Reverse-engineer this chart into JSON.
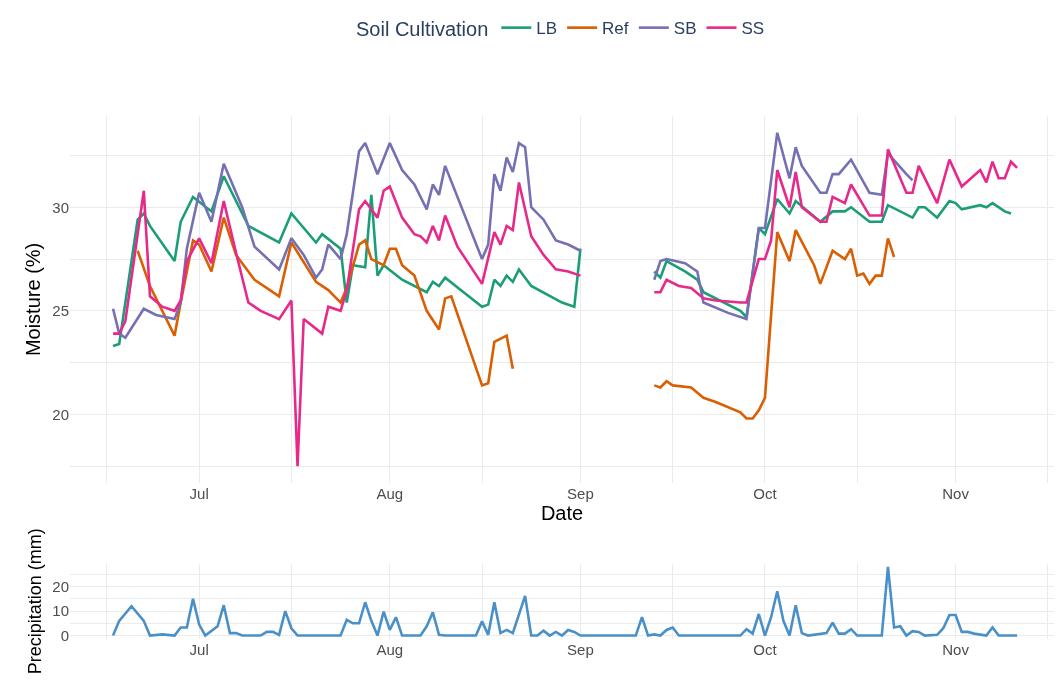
{
  "chart_data": [
    {
      "type": "line",
      "xlabel": "Date",
      "ylabel": "Moisture (%)",
      "legend_title": "Soil Cultivation",
      "legend": "top",
      "grid": true,
      "xlim": [
        "--06-10",
        "--11-17"
      ],
      "xticks": [
        {
          "value": "--06-16",
          "label": null
        },
        {
          "value": "--07-01",
          "label": "Jul"
        },
        {
          "value": "--07-16",
          "label": null
        },
        {
          "value": "--08-01",
          "label": "Aug"
        },
        {
          "value": "--08-16",
          "label": null
        },
        {
          "value": "--09-01",
          "label": "Sep"
        },
        {
          "value": "--09-16",
          "label": null
        },
        {
          "value": "--10-01",
          "label": "Oct"
        },
        {
          "value": "--10-16",
          "label": null
        },
        {
          "value": "--11-01",
          "label": "Nov"
        },
        {
          "value": "--11-16",
          "label": null
        }
      ],
      "ylim": [
        16.7,
        34.4
      ],
      "yticks": [
        {
          "value": 17.5,
          "label": null
        },
        20,
        {
          "value": 22.5,
          "label": null
        },
        25,
        {
          "value": 27.5,
          "label": null
        },
        30,
        {
          "value": 32.5,
          "label": null
        }
      ],
      "series": [
        {
          "name": "LB",
          "color": "#1b9e77",
          "x": [
            "--06-17",
            "--06-18",
            "--06-21",
            "--06-22",
            "--06-23",
            "--06-27",
            "--06-28",
            "--06-30",
            "--07-03",
            "--07-05",
            "--07-09",
            "--07-14",
            "--07-16",
            "--07-20",
            "--07-21",
            "--07-24",
            "--07-25",
            "--07-26",
            "--07-28",
            "--07-29",
            "--07-30",
            "--07-31",
            "--08-03",
            "--08-07",
            "--08-08",
            "--08-09",
            "--08-10",
            "--08-13",
            "--08-16",
            "--08-17",
            "--08-18",
            "--08-19",
            "--08-20",
            "--08-21",
            "--08-22",
            "--08-24",
            "--08-29",
            "--08-31",
            "--09-01",
            "--09-05",
            "--09-13",
            "--09-14",
            "--09-15",
            "--09-18",
            "--09-20",
            "--09-21",
            "--09-27",
            "--09-28",
            "--09-30",
            "--10-01",
            "--10-03",
            "--10-05",
            "--10-06",
            "--10-10",
            "--10-12",
            "--10-14",
            "--10-15",
            "--10-18",
            "--10-20",
            "--10-21",
            "--10-25",
            "--10-26",
            "--10-27",
            "--10-29",
            "--10-31",
            "--11-01",
            "--11-02",
            "--11-05",
            "--11-06",
            "--11-07",
            "--11-09",
            "--11-10"
          ],
          "values": [
            23.3,
            23.4,
            29.4,
            29.7,
            29.1,
            27.4,
            29.3,
            30.5,
            29.8,
            31.5,
            29.1,
            28.3,
            29.7,
            28.3,
            28.7,
            28.0,
            25.4,
            27.2,
            27.1,
            30.6,
            26.7,
            27.2,
            26.5,
            25.9,
            26.4,
            26.2,
            26.6,
            25.9,
            25.2,
            25.3,
            26.5,
            26.2,
            26.7,
            26.4,
            27.0,
            26.2,
            25.4,
            25.2,
            28.0,
            null,
            26.9,
            26.6,
            27.4,
            26.9,
            26.5,
            25.9,
            25.0,
            24.7,
            29.0,
            28.7,
            30.4,
            29.7,
            30.3,
            29.3,
            29.8,
            29.8,
            30.0,
            29.3,
            29.3,
            30.1,
            29.5,
            30.0,
            30.0,
            29.5,
            30.3,
            30.2,
            29.9,
            30.1,
            30.0,
            30.2,
            29.8,
            29.7
          ]
        },
        {
          "name": "Ref",
          "color": "#d95f02",
          "x": [
            "--06-21",
            "--06-23",
            "--06-27",
            "--06-28",
            "--06-30",
            "--07-01",
            "--07-03",
            "--07-05",
            "--07-07",
            "--07-10",
            "--07-14",
            "--07-16",
            "--07-20",
            "--07-22",
            "--07-24",
            "--07-25",
            "--07-27",
            "--07-28",
            "--07-29",
            "--07-31",
            "--08-01",
            "--08-02",
            "--08-03",
            "--08-05",
            "--08-07",
            "--08-09",
            "--08-10",
            "--08-11",
            "--08-16",
            "--08-17",
            "--08-18",
            "--08-20",
            "--08-21",
            "--09-05",
            "--09-13",
            "--09-14",
            "--09-15",
            "--09-16",
            "--09-19",
            "--09-21",
            "--09-23",
            "--09-27",
            "--09-28",
            "--09-29",
            "--09-30",
            "--10-01",
            "--10-03",
            "--10-05",
            "--10-06",
            "--10-09",
            "--10-10",
            "--10-12",
            "--10-14",
            "--10-15",
            "--10-16",
            "--10-17",
            "--10-18",
            "--10-19",
            "--10-20",
            "--10-21",
            "--10-22"
          ],
          "values": [
            27.9,
            26.2,
            23.8,
            25.4,
            28.4,
            28.2,
            26.9,
            29.5,
            27.7,
            26.5,
            25.7,
            28.3,
            26.4,
            26.0,
            25.4,
            26.1,
            28.2,
            28.4,
            27.5,
            27.2,
            28.0,
            28.0,
            27.2,
            26.7,
            25.0,
            24.1,
            25.6,
            25.7,
            21.4,
            21.5,
            23.5,
            23.8,
            22.2,
            null,
            21.4,
            21.3,
            21.6,
            21.4,
            21.3,
            20.8,
            20.6,
            20.1,
            19.8,
            19.8,
            20.2,
            20.8,
            28.8,
            27.4,
            28.9,
            27.2,
            26.3,
            27.9,
            27.5,
            28.0,
            26.7,
            26.8,
            26.3,
            26.7,
            26.7,
            28.5,
            27.6
          ]
        },
        {
          "name": "SB",
          "color": "#7570b3",
          "x": [
            "--06-17",
            "--06-18",
            "--06-19",
            "--06-22",
            "--06-24",
            "--06-27",
            "--06-28",
            "--06-29",
            "--07-01",
            "--07-03",
            "--07-05",
            "--07-08",
            "--07-10",
            "--07-14",
            "--07-16",
            "--07-18",
            "--07-20",
            "--07-21",
            "--07-22",
            "--07-24",
            "--07-25",
            "--07-27",
            "--07-28",
            "--07-30",
            "--08-01",
            "--08-03",
            "--08-05",
            "--08-07",
            "--08-08",
            "--08-09",
            "--08-10",
            "--08-16",
            "--08-17",
            "--08-18",
            "--08-19",
            "--08-20",
            "--08-21",
            "--08-22",
            "--08-23",
            "--08-24",
            "--08-26",
            "--08-28",
            "--08-30",
            "--09-01",
            "--09-05",
            "--09-13",
            "--09-14",
            "--09-15",
            "--09-18",
            "--09-20",
            "--09-21",
            "--09-25",
            "--09-28",
            "--09-30",
            "--10-01",
            "--10-03",
            "--10-05",
            "--10-06",
            "--10-07",
            "--10-10",
            "--10-11",
            "--10-12",
            "--10-13",
            "--10-15",
            "--10-18",
            "--10-20",
            "--10-21",
            "--10-24",
            "--10-25"
          ],
          "values": [
            25.1,
            23.9,
            23.7,
            25.1,
            24.8,
            24.6,
            25.4,
            28.0,
            30.7,
            29.3,
            32.1,
            30.0,
            28.1,
            27.0,
            28.5,
            27.7,
            26.6,
            27.0,
            28.2,
            27.5,
            28.7,
            32.7,
            33.1,
            31.6,
            33.1,
            31.8,
            31.1,
            29.9,
            31.1,
            30.6,
            32.0,
            27.5,
            28.2,
            31.6,
            30.8,
            32.4,
            31.7,
            33.1,
            32.9,
            30.0,
            29.4,
            28.4,
            28.2,
            27.9,
            null,
            26.5,
            27.4,
            27.5,
            27.3,
            26.9,
            25.4,
            24.9,
            24.6,
            29.0,
            29.0,
            33.6,
            31.4,
            32.9,
            32.0,
            30.7,
            30.7,
            31.6,
            31.6,
            32.3,
            30.7,
            30.6,
            32.6,
            31.6,
            31.3
          ]
        },
        {
          "name": "SS",
          "color": "#e7298a",
          "x": [
            "--06-17",
            "--06-18",
            "--06-19",
            "--06-22",
            "--06-23",
            "--06-25",
            "--06-27",
            "--06-28",
            "--06-29",
            "--07-01",
            "--07-03",
            "--07-05",
            "--07-07",
            "--07-09",
            "--07-11",
            "--07-14",
            "--07-16",
            "--07-17",
            "--07-18",
            "--07-21",
            "--07-22",
            "--07-24",
            "--07-25",
            "--07-27",
            "--07-28",
            "--07-30",
            "--07-31",
            "--08-01",
            "--08-03",
            "--08-05",
            "--08-06",
            "--08-07",
            "--08-08",
            "--08-09",
            "--08-10",
            "--08-12",
            "--08-16",
            "--08-18",
            "--08-19",
            "--08-20",
            "--08-21",
            "--08-22",
            "--08-24",
            "--08-26",
            "--08-28",
            "--08-30",
            "--09-01",
            "--09-05",
            "--09-13",
            "--09-14",
            "--09-15",
            "--09-17",
            "--09-19",
            "--09-21",
            "--09-23",
            "--09-27",
            "--09-28",
            "--09-30",
            "--10-01",
            "--10-02",
            "--10-03",
            "--10-05",
            "--10-06",
            "--10-07",
            "--10-10",
            "--10-11",
            "--10-12",
            "--10-14",
            "--10-15",
            "--10-18",
            "--10-20",
            "--10-21",
            "--10-24",
            "--10-25",
            "--10-26",
            "--10-29",
            "--10-31",
            "--11-02",
            "--11-05",
            "--11-06",
            "--11-07",
            "--11-08",
            "--11-09",
            "--11-10",
            "--11-11"
          ],
          "values": [
            23.9,
            23.9,
            24.5,
            30.8,
            25.7,
            25.2,
            25.0,
            25.5,
            27.4,
            28.5,
            27.3,
            30.3,
            27.8,
            25.4,
            25.0,
            24.6,
            25.5,
            17.5,
            24.6,
            23.9,
            25.2,
            25.0,
            26.0,
            29.9,
            30.3,
            29.5,
            30.8,
            31.0,
            29.5,
            28.7,
            28.6,
            28.3,
            29.1,
            28.4,
            29.6,
            28.1,
            26.3,
            28.8,
            28.2,
            29.1,
            28.9,
            31.2,
            28.6,
            27.7,
            27.0,
            26.9,
            26.7,
            null,
            25.9,
            25.9,
            26.5,
            26.2,
            26.1,
            25.6,
            25.5,
            25.4,
            25.4,
            27.5,
            27.5,
            28.4,
            31.8,
            30.0,
            31.7,
            30.0,
            29.3,
            29.3,
            30.5,
            30.2,
            31.1,
            29.6,
            29.6,
            32.8,
            30.7,
            30.7,
            32.0,
            30.2,
            32.3,
            31.0,
            31.8,
            31.2,
            32.2,
            31.4,
            31.4,
            32.2,
            31.9
          ]
        }
      ]
    },
    {
      "type": "line",
      "ylabel": "Precipitation (mm)",
      "grid": true,
      "xlim": [
        "--06-10",
        "--11-17"
      ],
      "xticks": [
        {
          "value": "--06-16",
          "label": null
        },
        {
          "value": "--07-01",
          "label": "Jul"
        },
        {
          "value": "--07-16",
          "label": null
        },
        {
          "value": "--08-01",
          "label": "Aug"
        },
        {
          "value": "--08-16",
          "label": null
        },
        {
          "value": "--09-01",
          "label": "Sep"
        },
        {
          "value": "--09-16",
          "label": null
        },
        {
          "value": "--10-01",
          "label": "Oct"
        },
        {
          "value": "--10-16",
          "label": null
        },
        {
          "value": "--11-01",
          "label": "Nov"
        },
        {
          "value": "--11-16",
          "label": null
        }
      ],
      "ylim": [
        -1.4,
        29.4
      ],
      "yticks": [
        0,
        {
          "value": 5,
          "label": null
        },
        10,
        {
          "value": 15,
          "label": null
        },
        20,
        {
          "value": 25,
          "label": null
        }
      ],
      "series": [
        {
          "color": "#4a90c8",
          "x": [
            "--06-17",
            "--06-18",
            "--06-20",
            "--06-22",
            "--06-23",
            "--06-25",
            "--06-27",
            "--06-28",
            "--06-29",
            "--06-30",
            "--07-01",
            "--07-02",
            "--07-04",
            "--07-05",
            "--07-06",
            "--07-07",
            "--07-08",
            "--07-11",
            "--07-12",
            "--07-13",
            "--07-14",
            "--07-15",
            "--07-16",
            "--07-17",
            "--07-24",
            "--07-25",
            "--07-26",
            "--07-27",
            "--07-28",
            "--07-29",
            "--07-30",
            "--07-31",
            "--08-01",
            "--08-02",
            "--08-03",
            "--08-06",
            "--08-07",
            "--08-08",
            "--08-09",
            "--08-10",
            "--08-15",
            "--08-16",
            "--08-17",
            "--08-18",
            "--08-19",
            "--08-20",
            "--08-21",
            "--08-23",
            "--08-24",
            "--08-25",
            "--08-26",
            "--08-27",
            "--08-28",
            "--08-29",
            "--08-30",
            "--08-31",
            "--09-01",
            "--09-10",
            "--09-11",
            "--09-12",
            "--09-13",
            "--09-14",
            "--09-15",
            "--09-16",
            "--09-17",
            "--09-27",
            "--09-28",
            "--09-29",
            "--09-30",
            "--10-01",
            "--10-02",
            "--10-03",
            "--10-04",
            "--10-05",
            "--10-06",
            "--10-07",
            "--10-08",
            "--10-11",
            "--10-12",
            "--10-13",
            "--10-14",
            "--10-15",
            "--10-16",
            "--10-20",
            "--10-21",
            "--10-22",
            "--10-23",
            "--10-24",
            "--10-25",
            "--10-26",
            "--10-27",
            "--10-29",
            "--10-30",
            "--10-31",
            "--11-01",
            "--11-02",
            "--11-03",
            "--11-04",
            "--11-06",
            "--11-07",
            "--11-08",
            "--11-11"
          ],
          "values": [
            0,
            6,
            12,
            6,
            0,
            0.5,
            0,
            3.3,
            3.3,
            15,
            4.5,
            0,
            3.8,
            12.4,
            1,
            1,
            0,
            0,
            1.5,
            1.5,
            0.3,
            10,
            3,
            0,
            0,
            6.4,
            5,
            5,
            13.6,
            6,
            0,
            9.8,
            2.3,
            7.5,
            0,
            0,
            3.8,
            9.5,
            0.3,
            0,
            0,
            5.8,
            0.3,
            13.6,
            1,
            2.3,
            1,
            16.2,
            0,
            0,
            2,
            0,
            1.5,
            0,
            2.3,
            1.5,
            0,
            0,
            7.5,
            0,
            0.5,
            0,
            2.3,
            3.3,
            0,
            0,
            2.6,
            0.8,
            8.8,
            0,
            7.5,
            18.1,
            6,
            0,
            12.4,
            1,
            0,
            1,
            5.3,
            0.8,
            0.8,
            2.6,
            0,
            0,
            28,
            3.3,
            3.8,
            0,
            1.8,
            1.5,
            0,
            0.3,
            3,
            8.4,
            8.4,
            1.5,
            1.5,
            0.8,
            0,
            3.3,
            0,
            0
          ]
        }
      ]
    }
  ]
}
